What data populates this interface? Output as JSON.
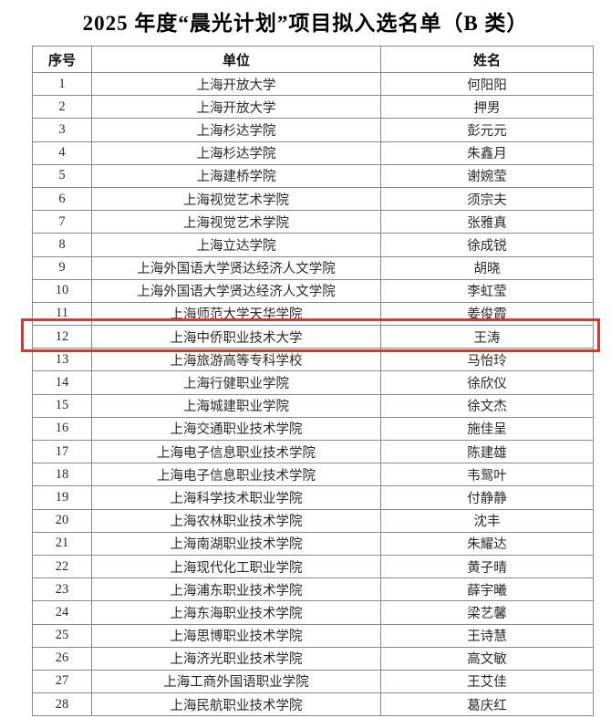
{
  "title": "2025 年度“晨光计划”项目拟入选名单（B 类）",
  "table": {
    "headers": [
      "序号",
      "单位",
      "姓名"
    ],
    "rows": [
      [
        "1",
        "上海开放大学",
        "何阳阳"
      ],
      [
        "2",
        "上海开放大学",
        "押男"
      ],
      [
        "3",
        "上海杉达学院",
        "彭元元"
      ],
      [
        "4",
        "上海杉达学院",
        "朱鑫月"
      ],
      [
        "5",
        "上海建桥学院",
        "谢婉莹"
      ],
      [
        "6",
        "上海视觉艺术学院",
        "须宗夫"
      ],
      [
        "7",
        "上海视觉艺术学院",
        "张雅真"
      ],
      [
        "8",
        "上海立达学院",
        "徐成锐"
      ],
      [
        "9",
        "上海外国语大学贤达经济人文学院",
        "胡晓"
      ],
      [
        "10",
        "上海外国语大学贤达经济人文学院",
        "李虹莹"
      ],
      [
        "11",
        "上海师范大学天华学院",
        "姜俊霞"
      ],
      [
        "12",
        "上海中侨职业技术大学",
        "王涛"
      ],
      [
        "13",
        "上海旅游高等专科学校",
        "马怡玲"
      ],
      [
        "14",
        "上海行健职业学院",
        "徐欣仪"
      ],
      [
        "15",
        "上海城建职业学院",
        "徐文杰"
      ],
      [
        "16",
        "上海交通职业技术学院",
        "施佳呈"
      ],
      [
        "17",
        "上海电子信息职业技术学院",
        "陈建雄"
      ],
      [
        "18",
        "上海电子信息职业技术学院",
        "韦鸳叶"
      ],
      [
        "19",
        "上海科学技术职业学院",
        "付静静"
      ],
      [
        "20",
        "上海农林职业技术学院",
        "沈丰"
      ],
      [
        "21",
        "上海南湖职业技术学院",
        "朱耀达"
      ],
      [
        "22",
        "上海现代化工职业学院",
        "黄子晴"
      ],
      [
        "23",
        "上海浦东职业技术学院",
        "薛宇曦"
      ],
      [
        "24",
        "上海东海职业技术学院",
        "梁艺馨"
      ],
      [
        "25",
        "上海思博职业技术学院",
        "王诗慧"
      ],
      [
        "26",
        "上海济光职业技术学院",
        "高文敏"
      ],
      [
        "27",
        "上海工商外国语职业学院",
        "王艾佳"
      ],
      [
        "28",
        "上海民航职业技术学院",
        "葛庆红"
      ]
    ],
    "highlighted_row_number": "12"
  },
  "colors": {
    "highlight_border": "#e53228",
    "table_border": "#8a8a8a",
    "title_text": "#000000"
  }
}
